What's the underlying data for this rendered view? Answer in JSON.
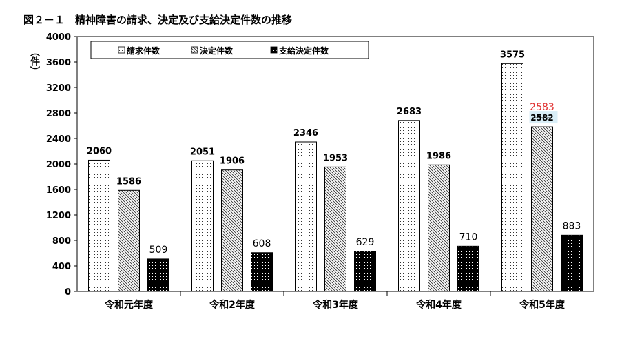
{
  "chart_data": {
    "type": "bar",
    "title": "図２－１　精神障害の請求、決定及び支給決定件数の推移",
    "ylabel": "（件）",
    "xlabel": "",
    "ylim": [
      0,
      4000
    ],
    "yticks": [
      0,
      400,
      800,
      1200,
      1600,
      2000,
      2400,
      2800,
      3200,
      3600,
      4000
    ],
    "categories": [
      "令和元年度",
      "令和2年度",
      "令和3年度",
      "令和4年度",
      "令和5年度"
    ],
    "series": [
      {
        "name": "請求件数",
        "values": [
          2060,
          2051,
          2346,
          2683,
          3575
        ],
        "pattern": "dots"
      },
      {
        "name": "決定件数",
        "values": [
          1586,
          1906,
          1953,
          1986,
          2583
        ],
        "pattern": "hatch"
      },
      {
        "name": "支給決定件数",
        "values": [
          509,
          608,
          629,
          710,
          883
        ],
        "pattern": "black"
      }
    ],
    "correction": {
      "category_index": 4,
      "series_index": 1,
      "old_value": "2582",
      "new_value": "2583",
      "new_color": "#e03030",
      "highlight": "#d9eef7"
    },
    "legend": "top-left",
    "grid": false
  }
}
